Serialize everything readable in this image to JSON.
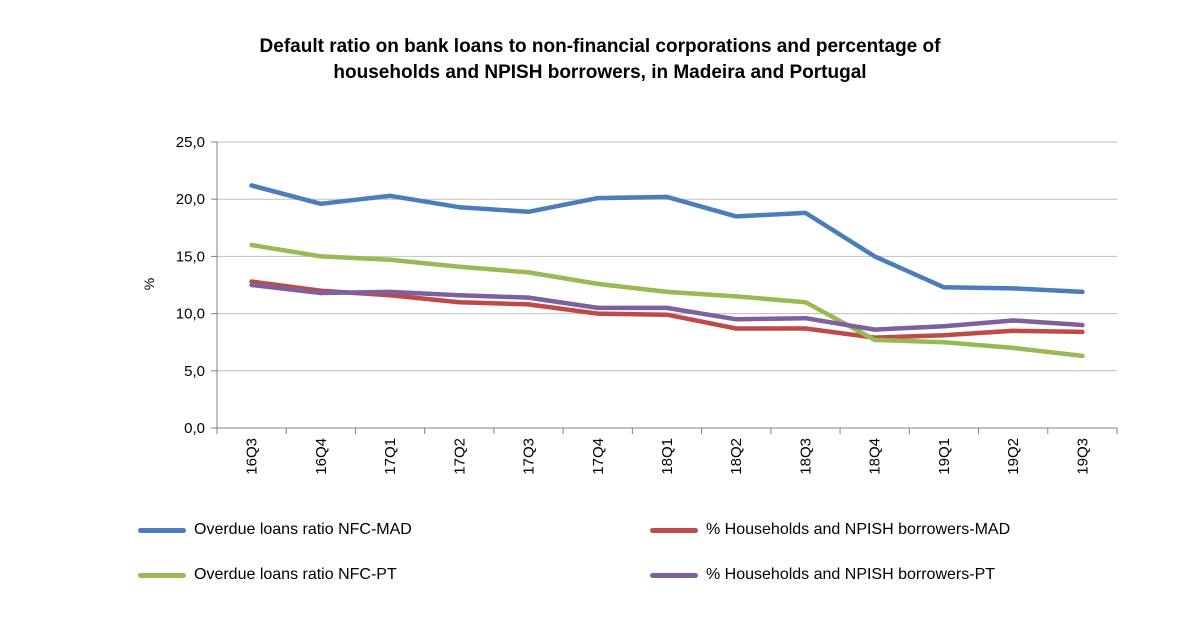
{
  "chart_data": {
    "type": "line",
    "title_line1": "Default ratio on bank loans to non-financial corporations and percentage of",
    "title_line2": "households and NPISH borrowers, in Madeira and Portugal",
    "xlabel": "",
    "ylabel": "%",
    "ylim": [
      0,
      25
    ],
    "yticks": [
      "0,0",
      "5,0",
      "10,0",
      "15,0",
      "20,0",
      "25,0"
    ],
    "grid": true,
    "legend_position": "bottom",
    "categories": [
      "16Q3",
      "16Q4",
      "17Q1",
      "17Q2",
      "17Q3",
      "17Q4",
      "18Q1",
      "18Q2",
      "18Q3",
      "18Q4",
      "19Q1",
      "19Q2",
      "19Q3"
    ],
    "series": [
      {
        "name": "Overdue loans ratio NFC-MAD",
        "color": "#4a7ebb",
        "values": [
          21.2,
          19.6,
          20.3,
          19.3,
          18.9,
          20.1,
          20.2,
          18.5,
          18.8,
          15.0,
          12.3,
          12.2,
          11.9
        ]
      },
      {
        "name": "% Households and NPISH borrowers-MAD",
        "color": "#be4b48",
        "values": [
          12.8,
          12.0,
          11.6,
          11.0,
          10.8,
          10.0,
          9.9,
          8.7,
          8.7,
          7.9,
          8.1,
          8.5,
          8.4
        ]
      },
      {
        "name": "Overdue loans ratio NFC-PT",
        "color": "#98b954",
        "values": [
          16.0,
          15.0,
          14.7,
          14.1,
          13.6,
          12.6,
          11.9,
          11.5,
          11.0,
          7.7,
          7.5,
          7.0,
          6.3
        ]
      },
      {
        "name": "% Households and NPISH borrowers-PT",
        "color": "#7d60a0",
        "values": [
          12.5,
          11.8,
          11.9,
          11.6,
          11.4,
          10.5,
          10.5,
          9.5,
          9.6,
          8.6,
          8.9,
          9.4,
          9.0
        ]
      }
    ]
  }
}
